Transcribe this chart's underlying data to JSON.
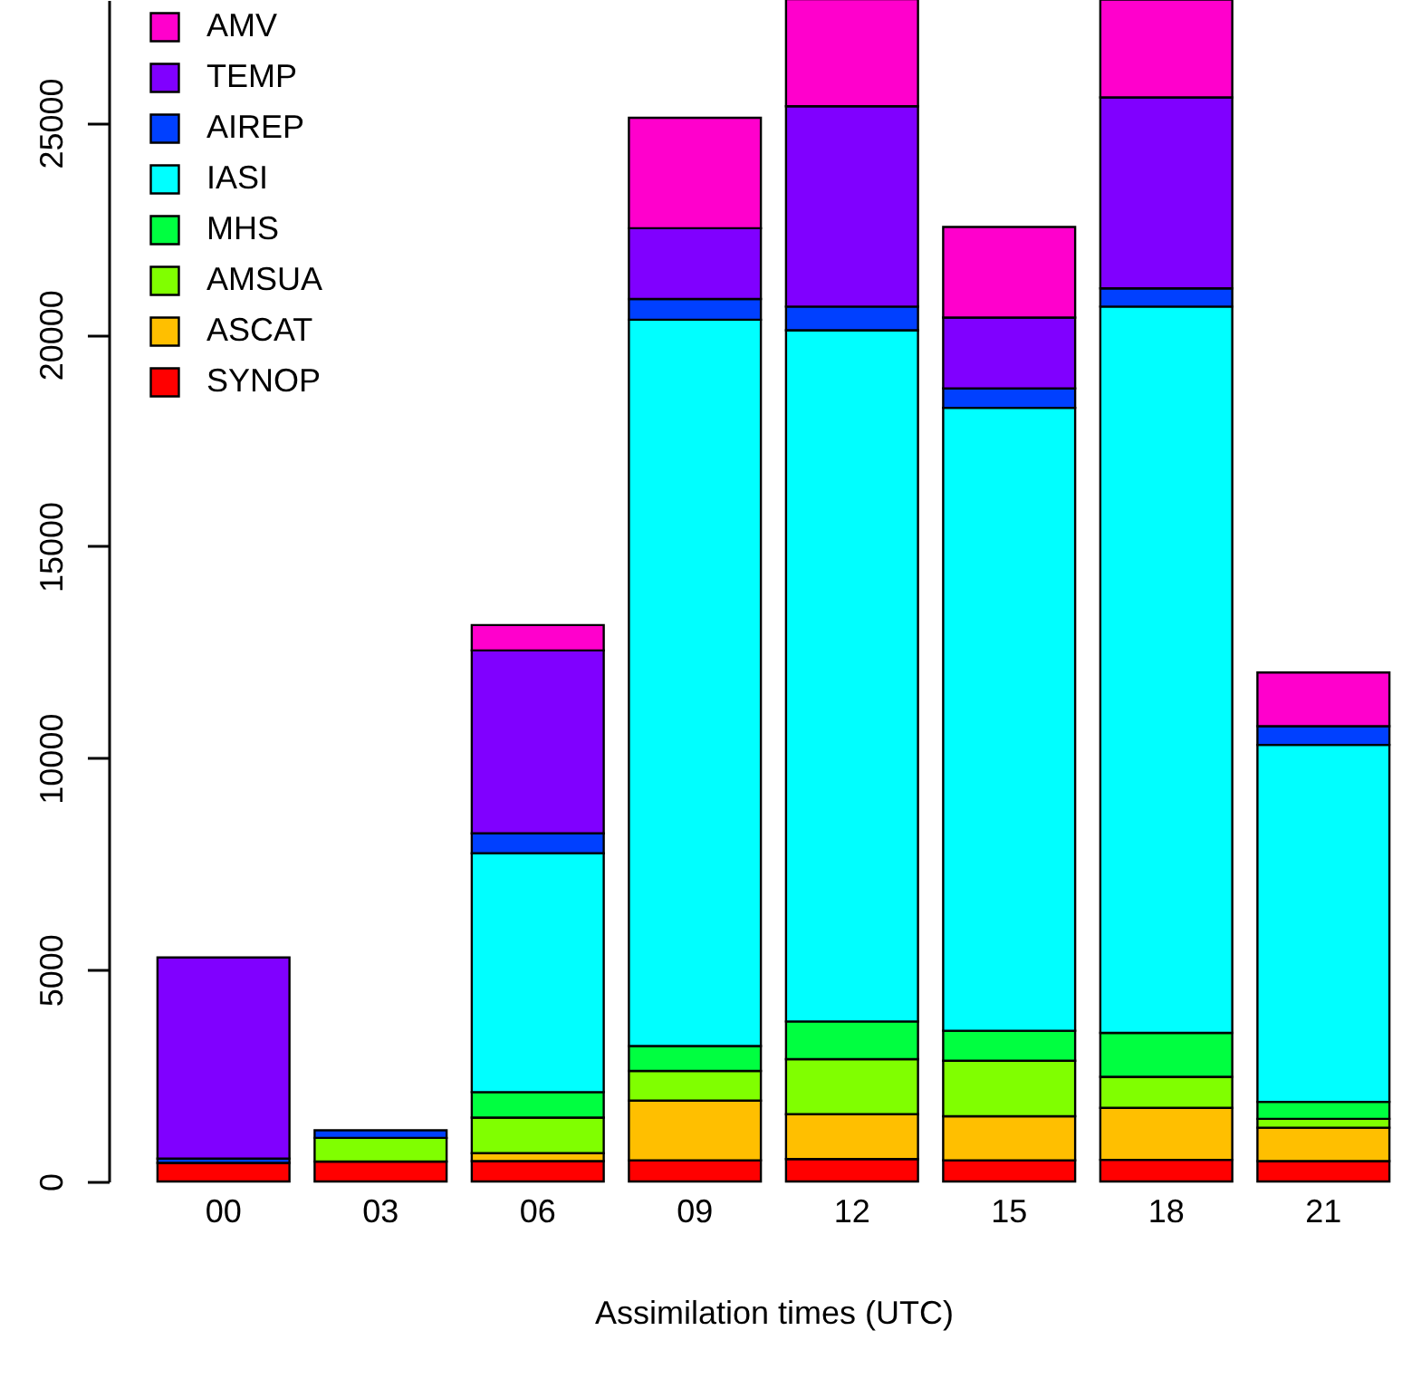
{
  "chart_data": {
    "type": "bar",
    "stacked": true,
    "xlabel": "Assimilation times (UTC)",
    "categories": [
      "00",
      "03",
      "06",
      "09",
      "12",
      "15",
      "18",
      "21"
    ],
    "series": [
      {
        "name": "SYNOP",
        "color": "#ff0000",
        "values": [
          440,
          470,
          480,
          500,
          530,
          500,
          510,
          480
        ]
      },
      {
        "name": "ASCAT",
        "color": "#ffbf00",
        "values": [
          null,
          null,
          190,
          1410,
          1060,
          1040,
          1230,
          790
        ]
      },
      {
        "name": "AMSUA",
        "color": "#80ff00",
        "values": [
          null,
          560,
          840,
          700,
          1300,
          1310,
          730,
          210
        ]
      },
      {
        "name": "MHS",
        "color": "#00ff40",
        "values": [
          null,
          null,
          600,
          590,
          890,
          710,
          1040,
          400
        ]
      },
      {
        "name": "IASI",
        "color": "#00ffff",
        "values": [
          null,
          null,
          5640,
          17150,
          16320,
          14710,
          17150,
          8430
        ]
      },
      {
        "name": "AIREP",
        "color": "#0040ff",
        "values": [
          100,
          180,
          470,
          490,
          560,
          460,
          430,
          440
        ]
      },
      {
        "name": "TEMP",
        "color": "#8000ff",
        "values": [
          4750,
          null,
          4320,
          1670,
          4730,
          1670,
          4510,
          null
        ]
      },
      {
        "name": "AMV",
        "color": "#ff00cc",
        "values": [
          null,
          null,
          600,
          2610,
          2530,
          2140,
          2310,
          1270
        ]
      }
    ],
    "ylim": [
      0,
      27900
    ],
    "yticks": [
      0,
      5000,
      10000,
      15000,
      20000,
      25000
    ],
    "grid": false,
    "legend": "top left"
  }
}
